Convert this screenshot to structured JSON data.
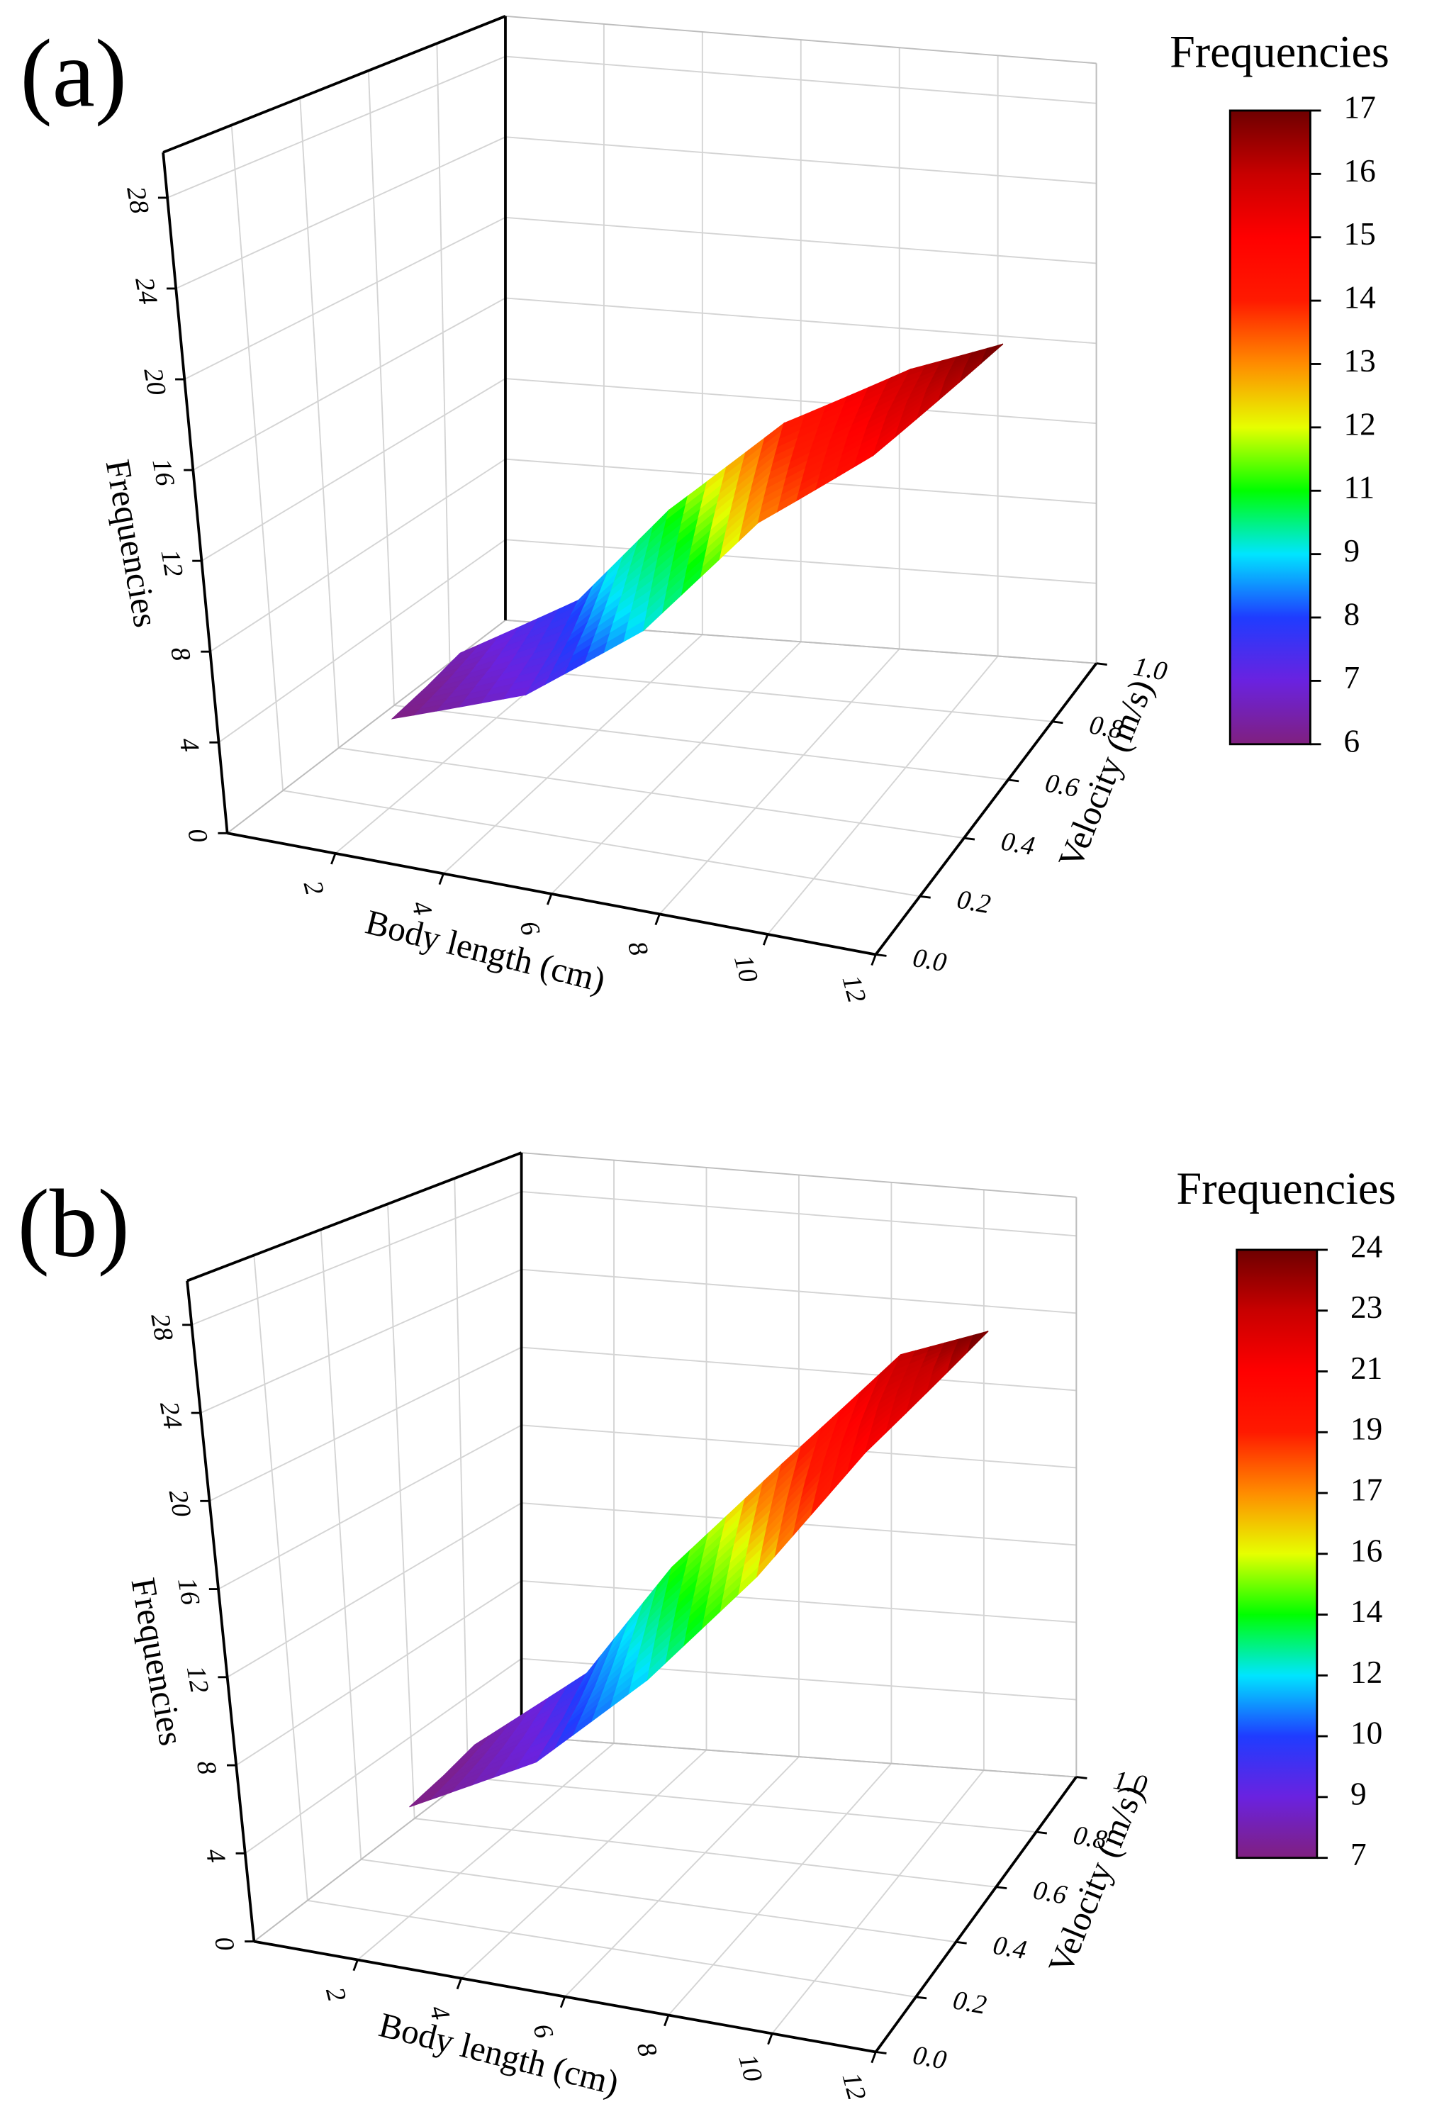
{
  "chart_data": [
    {
      "type": "surface",
      "panel_label": "(a)",
      "xlabel": "Body length (cm)",
      "ylabel": "Velocity (m/s)",
      "zlabel": "Frequencies",
      "xlim": [
        0,
        12
      ],
      "xticks": [
        2,
        4,
        6,
        8,
        10,
        12
      ],
      "ylim": [
        0,
        1
      ],
      "yticks": [
        {
          "value": 0,
          "label": "0.0"
        },
        0.2,
        0.4,
        0.6,
        0.8,
        {
          "value": 1,
          "label": "1.0"
        }
      ],
      "zlim": [
        0,
        30
      ],
      "zticks": [
        0,
        4,
        8,
        12,
        16,
        20,
        24,
        28
      ],
      "grid": true,
      "x": [
        [
          3,
          5,
          6.5,
          8,
          9.5,
          10.6
        ],
        [
          3,
          4.8,
          6,
          7.5,
          9.2,
          10.6
        ],
        [
          3,
          4.5,
          5.5,
          7,
          9,
          10.6
        ]
      ],
      "y": [
        [
          0.05,
          0.15,
          0.3,
          0.45,
          0.6,
          0.9
        ],
        [
          0.18,
          0.3,
          0.45,
          0.6,
          0.72,
          0.9
        ],
        [
          0.3,
          0.45,
          0.6,
          0.75,
          0.85,
          0.9
        ]
      ],
      "z": [
        [
          6,
          7,
          9,
          13,
          15,
          17
        ],
        [
          6.2,
          7.5,
          10,
          13.5,
          15.5,
          17
        ],
        [
          6.5,
          8,
          11,
          14,
          16,
          17
        ]
      ],
      "colorbar": {
        "title": "Frequencies",
        "levels": [
          6,
          7,
          8,
          9,
          11,
          12,
          13,
          14,
          15,
          16,
          17
        ],
        "colors": [
          "#80207f",
          "#6a22e0",
          "#1f3cff",
          "#00e5ff",
          "#00ff00",
          "#e6ff00",
          "#ff8c00",
          "#ff1a00",
          "#ff0000",
          "#c80000",
          "#6e0000"
        ]
      }
    },
    {
      "type": "surface",
      "panel_label": "(b)",
      "xlabel": "Body length (cm)",
      "ylabel": "Velocity (m/s)",
      "zlabel": "Frequencies",
      "xlim": [
        0,
        12
      ],
      "xticks": [
        2,
        4,
        6,
        8,
        10,
        12
      ],
      "ylim": [
        0,
        1
      ],
      "yticks": [
        {
          "value": 0,
          "label": "0.0"
        },
        0.2,
        0.4,
        0.6,
        0.8,
        {
          "value": 1,
          "label": "1.0"
        }
      ],
      "zlim": [
        0,
        30
      ],
      "zticks": [
        0,
        4,
        8,
        12,
        16,
        20,
        24,
        28
      ],
      "grid": true,
      "x": [
        [
          3,
          5,
          6.5,
          8,
          9.5,
          10.6
        ],
        [
          3,
          4.8,
          6,
          7.5,
          9.2,
          10.6
        ],
        [
          3,
          4.5,
          5.5,
          7,
          9,
          10.6
        ]
      ],
      "y": [
        [
          0.05,
          0.15,
          0.3,
          0.45,
          0.6,
          0.9
        ],
        [
          0.18,
          0.3,
          0.45,
          0.6,
          0.72,
          0.9
        ],
        [
          0.3,
          0.45,
          0.6,
          0.75,
          0.85,
          0.9
        ]
      ],
      "z": [
        [
          7,
          9,
          12,
          16,
          21,
          24
        ],
        [
          7.2,
          9.5,
          13,
          17,
          22,
          24
        ],
        [
          7.5,
          10,
          14,
          18,
          23,
          24
        ]
      ],
      "colorbar": {
        "title": "Frequencies",
        "levels": [
          7,
          9,
          10,
          12,
          14,
          16,
          17,
          19,
          21,
          23,
          24
        ],
        "colors": [
          "#80207f",
          "#6a22e0",
          "#1f3cff",
          "#00e5ff",
          "#00ff00",
          "#e6ff00",
          "#ff8c00",
          "#ff1a00",
          "#ff0000",
          "#c80000",
          "#6e0000"
        ]
      }
    }
  ]
}
